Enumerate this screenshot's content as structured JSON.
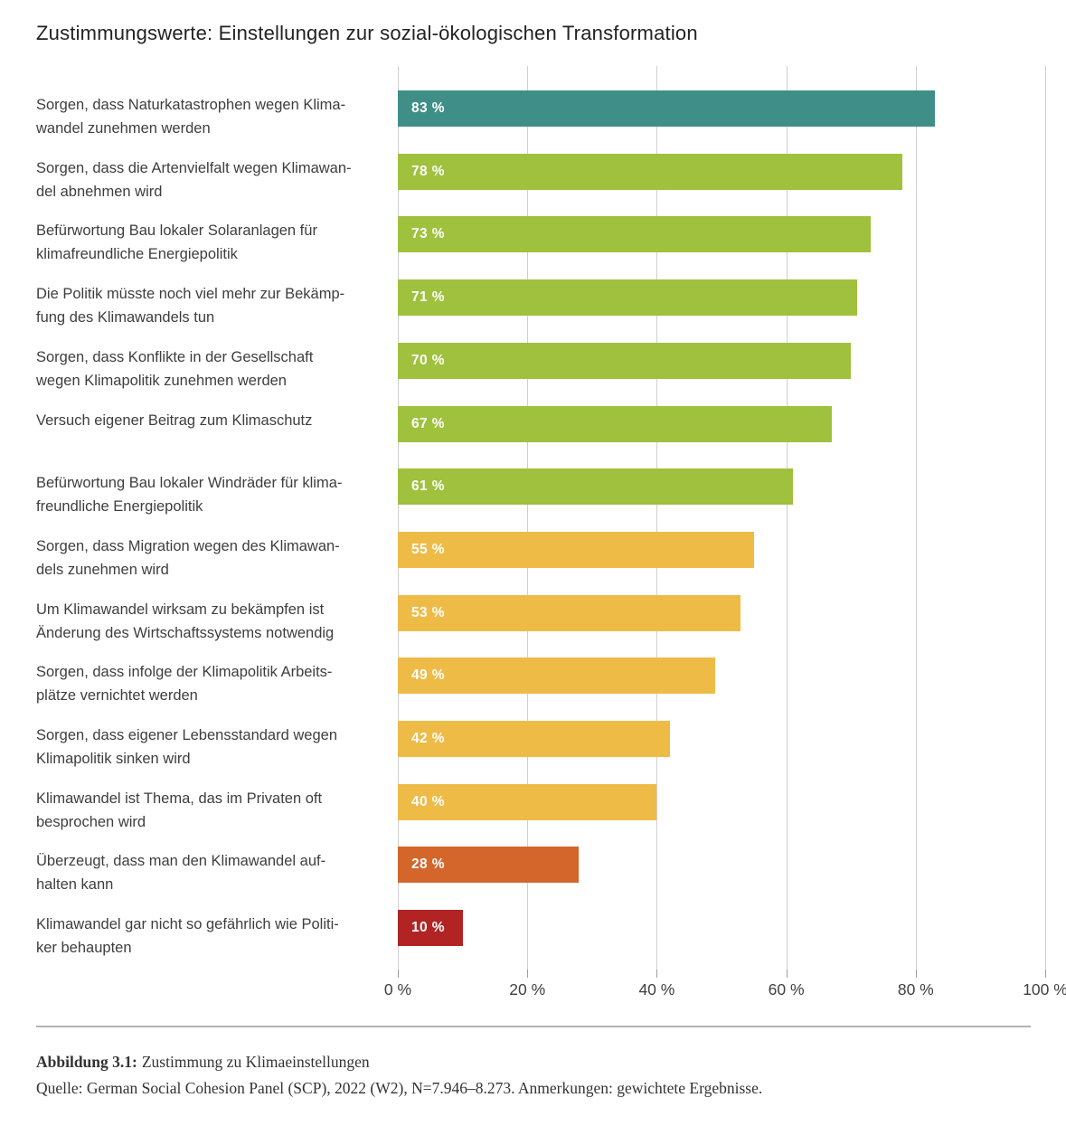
{
  "chart_data": {
    "type": "bar",
    "orientation": "horizontal",
    "title": "Zustimmungswerte: Einstellungen zur sozial-ökologischen Transformation",
    "categories": [
      "Sorgen, dass Naturkatastrophen wegen Klima-\nwandel zunehmen werden",
      "Sorgen, dass die Artenvielfalt wegen Klimawan-\ndel abnehmen wird",
      "Befürwortung Bau lokaler Solaranlagen für\nklimafreundliche Energiepolitik",
      "Die Politik müsste noch viel mehr zur Bekämp-\nfung des Klimawandels tun",
      "Sorgen, dass Konflikte in der Gesellschaft\nwegen Klimapolitik zunehmen werden",
      "Versuch eigener Beitrag zum Klimaschutz",
      "Befürwortung Bau lokaler Windräder für klima-\nfreundliche Energiepolitik",
      "Sorgen, dass Migration wegen des Klimawan-\ndels zunehmen wird",
      "Um Klimawandel wirksam zu bekämpfen ist\nÄnderung des Wirtschaftssystems notwendig",
      "Sorgen, dass infolge der Klimapolitik Arbeits-\nplätze vernichtet werden",
      "Sorgen, dass eigener Lebensstandard wegen\nKlimapolitik sinken wird",
      "Klimawandel ist Thema, das im Privaten oft\nbesprochen wird",
      "Überzeugt, dass man den Klimawandel auf-\nhalten kann",
      "Klimawandel gar nicht so gefährlich wie Politi-\nker behaupten"
    ],
    "values": [
      83,
      78,
      73,
      71,
      70,
      67,
      61,
      55,
      53,
      49,
      42,
      40,
      28,
      10
    ],
    "value_labels": [
      "83 %",
      "78 %",
      "73 %",
      "71 %",
      "70 %",
      "67 %",
      "61 %",
      "55 %",
      "53 %",
      "49 %",
      "42 %",
      "40 %",
      "28 %",
      "10 %"
    ],
    "bar_colors": [
      "teal",
      "green",
      "green",
      "green",
      "green",
      "green",
      "green",
      "yellow",
      "yellow",
      "yellow",
      "yellow",
      "yellow",
      "orange",
      "red"
    ],
    "palette": {
      "teal": "#3F8F88",
      "green": "#9FC13E",
      "yellow": "#EFBB47",
      "orange": "#D4662B",
      "red": "#B22424"
    },
    "xlim": [
      0,
      100
    ],
    "x_ticks": [
      "0 %",
      "20 %",
      "40 %",
      "60 %",
      "80 %",
      "100 %"
    ],
    "x_tick_values": [
      0,
      20,
      40,
      60,
      80,
      100
    ],
    "grid": "vertical",
    "legend": "none"
  },
  "footer": {
    "caption_label": "Abbildung 3.1:",
    "caption_text": "Zustimmung zu Klimaeinstellungen",
    "source": "Quelle: German Social Cohesion Panel (SCP), 2022 (W2), N=7.946–8.273. Anmerkungen: gewichtete Ergebnisse."
  }
}
